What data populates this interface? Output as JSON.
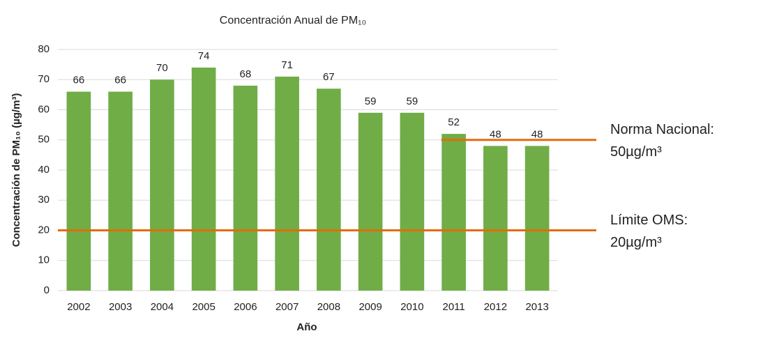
{
  "chart_data": {
    "type": "bar",
    "title": "Concentración Anual de PM₁₀",
    "x_label": "Año",
    "y_label": "Concentración de PM₁₀ (µg/m³)",
    "categories": [
      "2002",
      "2003",
      "2004",
      "2005",
      "2006",
      "2007",
      "2008",
      "2009",
      "2010",
      "2011",
      "2012",
      "2013"
    ],
    "values": [
      66,
      66,
      70,
      74,
      68,
      71,
      67,
      59,
      59,
      52,
      48,
      48
    ],
    "color": "#70ad47",
    "ylim": [
      0,
      80
    ],
    "yticks": [
      0,
      10,
      20,
      30,
      40,
      50,
      60,
      70,
      80
    ],
    "grid": true,
    "reference_lines": [
      {
        "value": 50,
        "color": "#e36c0a",
        "start": "2011",
        "label": [
          "Norma Nacional:",
          "50µg/m³"
        ]
      },
      {
        "value": 20,
        "color": "#e36c0a",
        "label": [
          "Límite OMS:",
          "20µg/m³"
        ]
      }
    ]
  }
}
